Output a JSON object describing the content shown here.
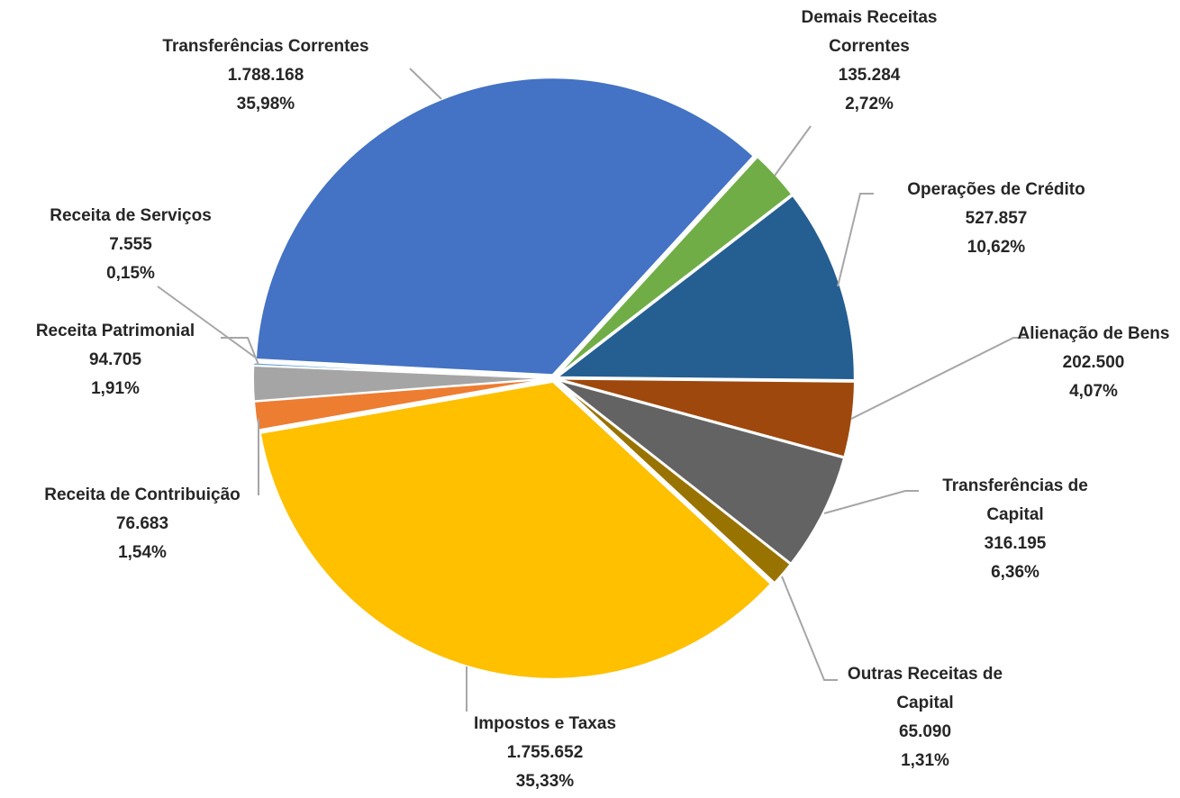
{
  "chart_data": {
    "type": "pie",
    "categories": [
      "Transferências Correntes",
      "Demais Receitas Correntes",
      "Operações de Crédito",
      "Alienação de Bens",
      "Transferências de Capital",
      "Outras Receitas de Capital",
      "Impostos e Taxas",
      "Receita de Contribuição",
      "Receita Patrimonial",
      "Receita de Serviços"
    ],
    "values": [
      1788168,
      135284,
      527857,
      202500,
      316195,
      65090,
      1755652,
      76683,
      94705,
      7555
    ],
    "value_labels": [
      "1.788.168",
      "135.284",
      "527.857",
      "202.500",
      "316.195",
      "65.090",
      "1.755.652",
      "76.683",
      "94.705",
      "7.555"
    ],
    "percentages": [
      35.98,
      2.72,
      10.62,
      4.07,
      6.36,
      1.31,
      35.33,
      1.54,
      1.91,
      0.15
    ],
    "percentage_labels": [
      "35,98%",
      "2,72%",
      "10,62%",
      "4,07%",
      "6,36%",
      "1,31%",
      "35,33%",
      "1,54%",
      "1,91%",
      "0,15%"
    ],
    "colors": [
      "#4472c4",
      "#70ad47",
      "#255e91",
      "#9e480e",
      "#636363",
      "#997300",
      "#ffc000",
      "#ed7d31",
      "#a5a5a5",
      "#5b9bd5"
    ]
  }
}
